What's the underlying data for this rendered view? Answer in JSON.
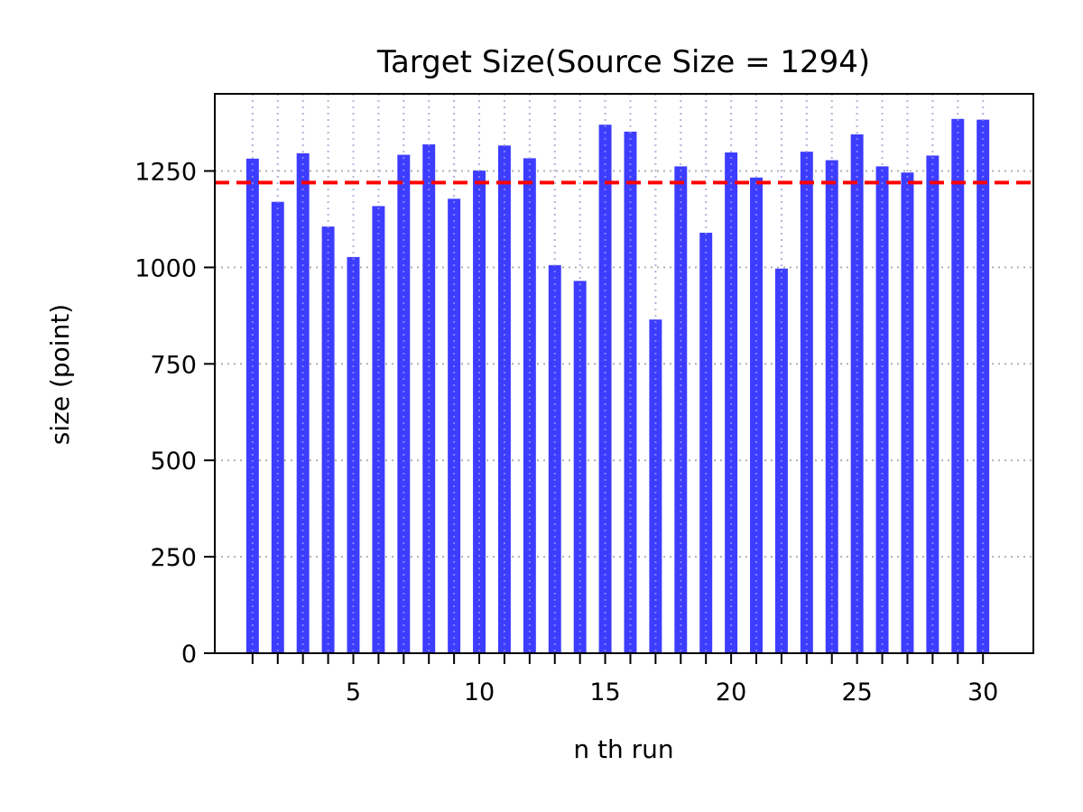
{
  "chart_data": {
    "type": "bar",
    "title": "Target Size(Source Size = 1294)",
    "xlabel": "n th run",
    "ylabel": "size (point)",
    "x": [
      1,
      2,
      3,
      4,
      5,
      6,
      7,
      8,
      9,
      10,
      11,
      12,
      13,
      14,
      15,
      16,
      17,
      18,
      19,
      20,
      21,
      22,
      23,
      24,
      25,
      26,
      27,
      28,
      29,
      30
    ],
    "values": [
      1282,
      1170,
      1296,
      1106,
      1027,
      1159,
      1292,
      1319,
      1178,
      1251,
      1316,
      1283,
      1006,
      965,
      1370,
      1352,
      865,
      1262,
      1090,
      1298,
      1233,
      997,
      1300,
      1278,
      1345,
      1262,
      1246,
      1290,
      1385,
      1383
    ],
    "xlim": [
      -0.5,
      32
    ],
    "ylim": [
      0,
      1450
    ],
    "xticks": [
      1,
      2,
      3,
      4,
      5,
      6,
      7,
      8,
      9,
      10,
      11,
      12,
      13,
      14,
      15,
      16,
      17,
      18,
      19,
      20,
      21,
      22,
      23,
      24,
      25,
      26,
      27,
      28,
      29,
      30
    ],
    "xtick_labels": [
      "",
      "",
      "",
      "",
      "5",
      "",
      "",
      "",
      "",
      "10",
      "",
      "",
      "",
      "",
      "15",
      "",
      "",
      "",
      "",
      "20",
      "",
      "",
      "",
      "",
      "25",
      "",
      "",
      "",
      "",
      "30"
    ],
    "yticks": [
      0,
      250,
      500,
      750,
      1000,
      1250
    ],
    "ytick_labels": [
      "0",
      "250",
      "500",
      "750",
      "1000",
      "1250"
    ],
    "reference_line": {
      "value": 1220,
      "style": "dashed"
    },
    "grid": true,
    "colors": {
      "bar": "#3333ff",
      "reference_line": "#ff0000",
      "grid": "#b0b0b0"
    }
  }
}
